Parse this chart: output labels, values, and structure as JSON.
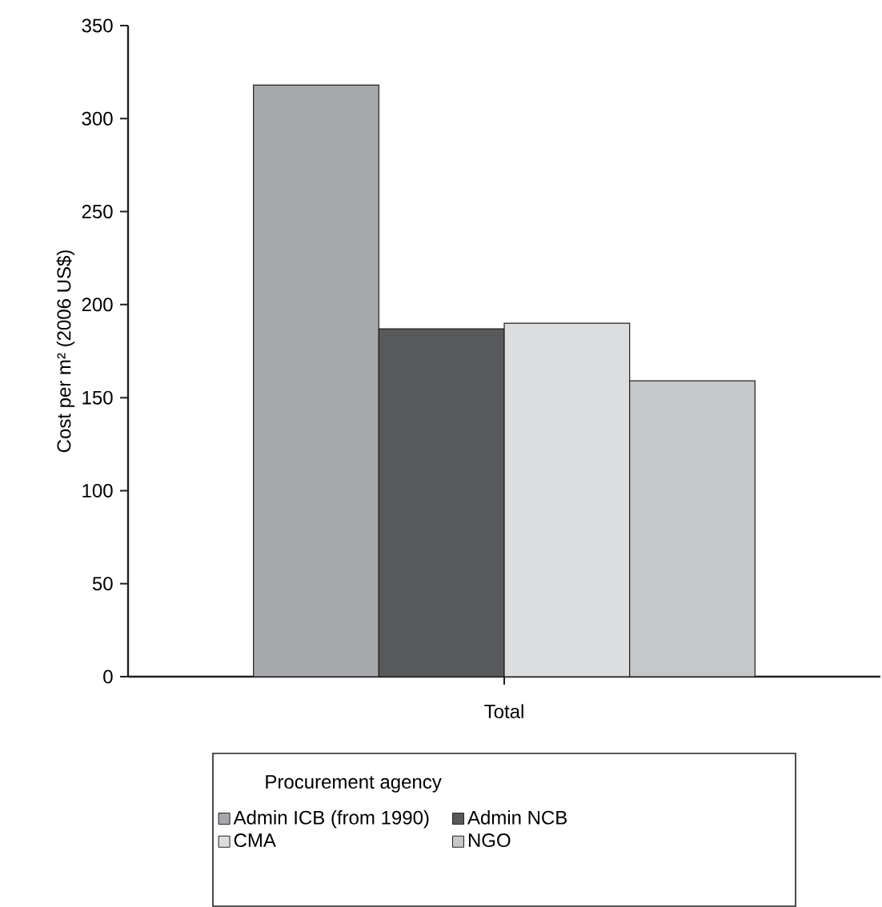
{
  "chart_data": {
    "type": "bar",
    "ylabel": "Cost per m² (2006 US$)",
    "legend_title": "Procurement agency",
    "categories": [
      "Total"
    ],
    "ylim": [
      0,
      350
    ],
    "yticks": [
      0,
      50,
      100,
      150,
      200,
      250,
      300,
      350
    ],
    "legend": "bottom",
    "grid": false,
    "series": [
      {
        "name": "Admin ICB (from 1990)",
        "color": "#a7a8ab",
        "values": [
          318
        ]
      },
      {
        "name": "Admin NCB",
        "color": "#58595b",
        "values": [
          187
        ]
      },
      {
        "name": "CMA",
        "color": "#dcdddf",
        "values": [
          190
        ]
      },
      {
        "name": "NGO",
        "color": "#c6c7c9",
        "values": [
          159
        ]
      }
    ]
  }
}
